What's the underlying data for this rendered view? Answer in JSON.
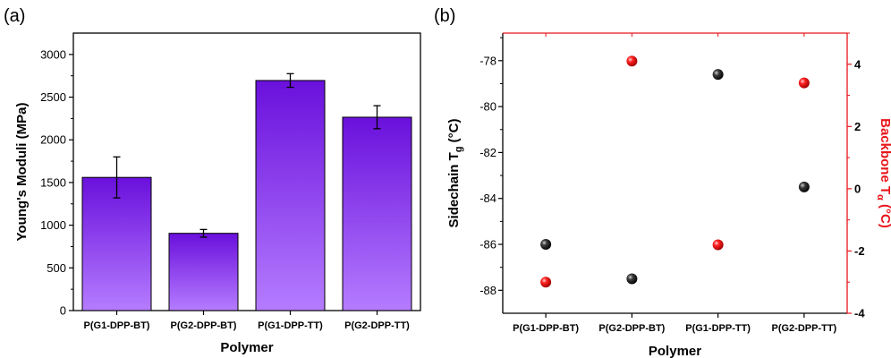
{
  "chart_data": [
    {
      "panel_label": "(a)",
      "type": "bar",
      "categories": [
        "P(G1-DPP-BT)",
        "P(G2-DPP-BT)",
        "P(G1-DPP-TT)",
        "P(G2-DPP-TT)"
      ],
      "values": [
        1560,
        905,
        2695,
        2265
      ],
      "errors": [
        240,
        45,
        80,
        135
      ],
      "ylabel": "Young's Moduli (MPa)",
      "xlabel": "Polymer",
      "ylim": [
        0,
        3250
      ],
      "yticks": [
        "0",
        "500",
        "1000",
        "1500",
        "2000",
        "2500",
        "3000"
      ],
      "bar_color_top": "#6a10dc",
      "bar_color_bottom": "#b57cff",
      "grid": false
    },
    {
      "panel_label": "(b)",
      "type": "scatter",
      "categories": [
        "P(G1-DPP-BT)",
        "P(G2-DPP-BT)",
        "P(G1-DPP-TT)",
        "P(G2-DPP-TT)"
      ],
      "xlabel": "Polymer",
      "left_axis": {
        "label_main": "Sidechain T",
        "label_sub": "g",
        "label_unit": " (°C)",
        "ylim": [
          -89,
          -76.8
        ],
        "yticks": [
          "-88",
          "-86",
          "-84",
          "-82",
          "-80",
          "-78"
        ],
        "color": "#000000",
        "values": [
          -86.0,
          -87.5,
          -78.6,
          -83.5
        ]
      },
      "right_axis": {
        "label_main": "Backbone T",
        "label_sub": "α",
        "label_unit": " (°C)",
        "ylim": [
          -4,
          5
        ],
        "yticks": [
          "-4",
          "-2",
          "0",
          "2",
          "4"
        ],
        "color": "#e8141a",
        "values": [
          -3.0,
          4.1,
          -1.8,
          3.4
        ]
      },
      "grid": false
    }
  ]
}
